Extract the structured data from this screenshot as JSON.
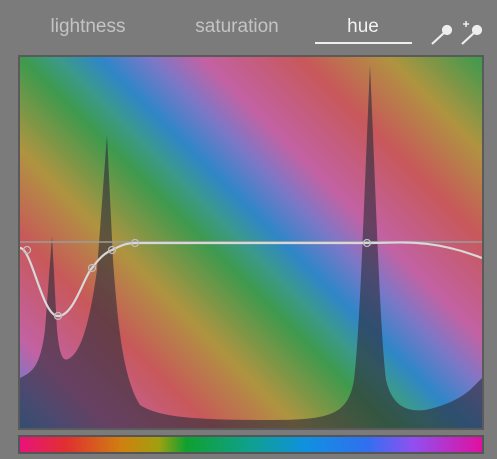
{
  "tabs": [
    "lightness",
    "saturation",
    "hue"
  ]
}
